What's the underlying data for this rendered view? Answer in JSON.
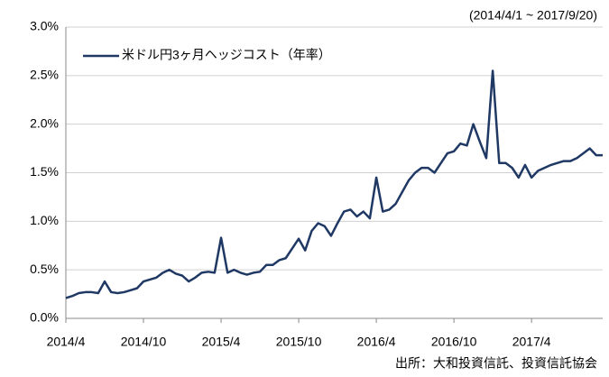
{
  "chart_data": {
    "type": "line",
    "date_range": "(2014/4/1 ~ 2017/9/20)",
    "source": "出所：大和投資信託、投資信託協会",
    "categories": [
      "2014/4",
      null,
      null,
      null,
      null,
      null,
      null,
      null,
      null,
      null,
      null,
      null,
      "2014/10",
      null,
      null,
      null,
      null,
      null,
      null,
      null,
      null,
      null,
      null,
      null,
      "2015/4",
      null,
      null,
      null,
      null,
      null,
      null,
      null,
      null,
      null,
      null,
      null,
      "2015/10",
      null,
      null,
      null,
      null,
      null,
      null,
      null,
      null,
      null,
      null,
      null,
      "2016/4",
      null,
      null,
      null,
      null,
      null,
      null,
      null,
      null,
      null,
      null,
      null,
      "2016/10",
      null,
      null,
      null,
      null,
      null,
      null,
      null,
      null,
      null,
      null,
      null,
      "2017/4",
      null,
      null,
      null,
      null,
      null,
      null,
      null,
      null,
      null,
      null,
      null
    ],
    "series": [
      {
        "name": "米ドル円3ヶ月ヘッジコスト（年率）",
        "color": "#1f3864",
        "values": [
          0.21,
          0.23,
          0.26,
          0.27,
          0.27,
          0.26,
          0.38,
          0.27,
          0.26,
          0.27,
          0.29,
          0.31,
          0.38,
          0.4,
          0.42,
          0.47,
          0.5,
          0.46,
          0.44,
          0.38,
          0.42,
          0.47,
          0.48,
          0.47,
          0.83,
          0.47,
          0.5,
          0.47,
          0.45,
          0.47,
          0.48,
          0.55,
          0.55,
          0.6,
          0.62,
          0.72,
          0.82,
          0.7,
          0.9,
          0.98,
          0.95,
          0.85,
          0.98,
          1.1,
          1.12,
          1.05,
          1.1,
          1.03,
          1.45,
          1.1,
          1.12,
          1.18,
          1.3,
          1.42,
          1.5,
          1.55,
          1.55,
          1.5,
          1.6,
          1.7,
          1.72,
          1.8,
          1.78,
          2.0,
          1.82,
          1.65,
          2.55,
          1.6,
          1.6,
          1.55,
          1.45,
          1.58,
          1.45,
          1.52,
          1.55,
          1.58,
          1.6,
          1.62,
          1.62,
          1.65,
          1.7,
          1.75,
          1.68,
          1.68
        ]
      }
    ],
    "ylim": [
      0,
      3
    ],
    "yticks": [
      {
        "value": 0,
        "label": "0.0%"
      },
      {
        "value": 0.5,
        "label": "0.5%"
      },
      {
        "value": 1,
        "label": "1.0%"
      },
      {
        "value": 1.5,
        "label": "1.5%"
      },
      {
        "value": 2,
        "label": "2.0%"
      },
      {
        "value": 2.5,
        "label": "2.5%"
      },
      {
        "value": 3,
        "label": "3.0%"
      }
    ],
    "grid": true
  }
}
